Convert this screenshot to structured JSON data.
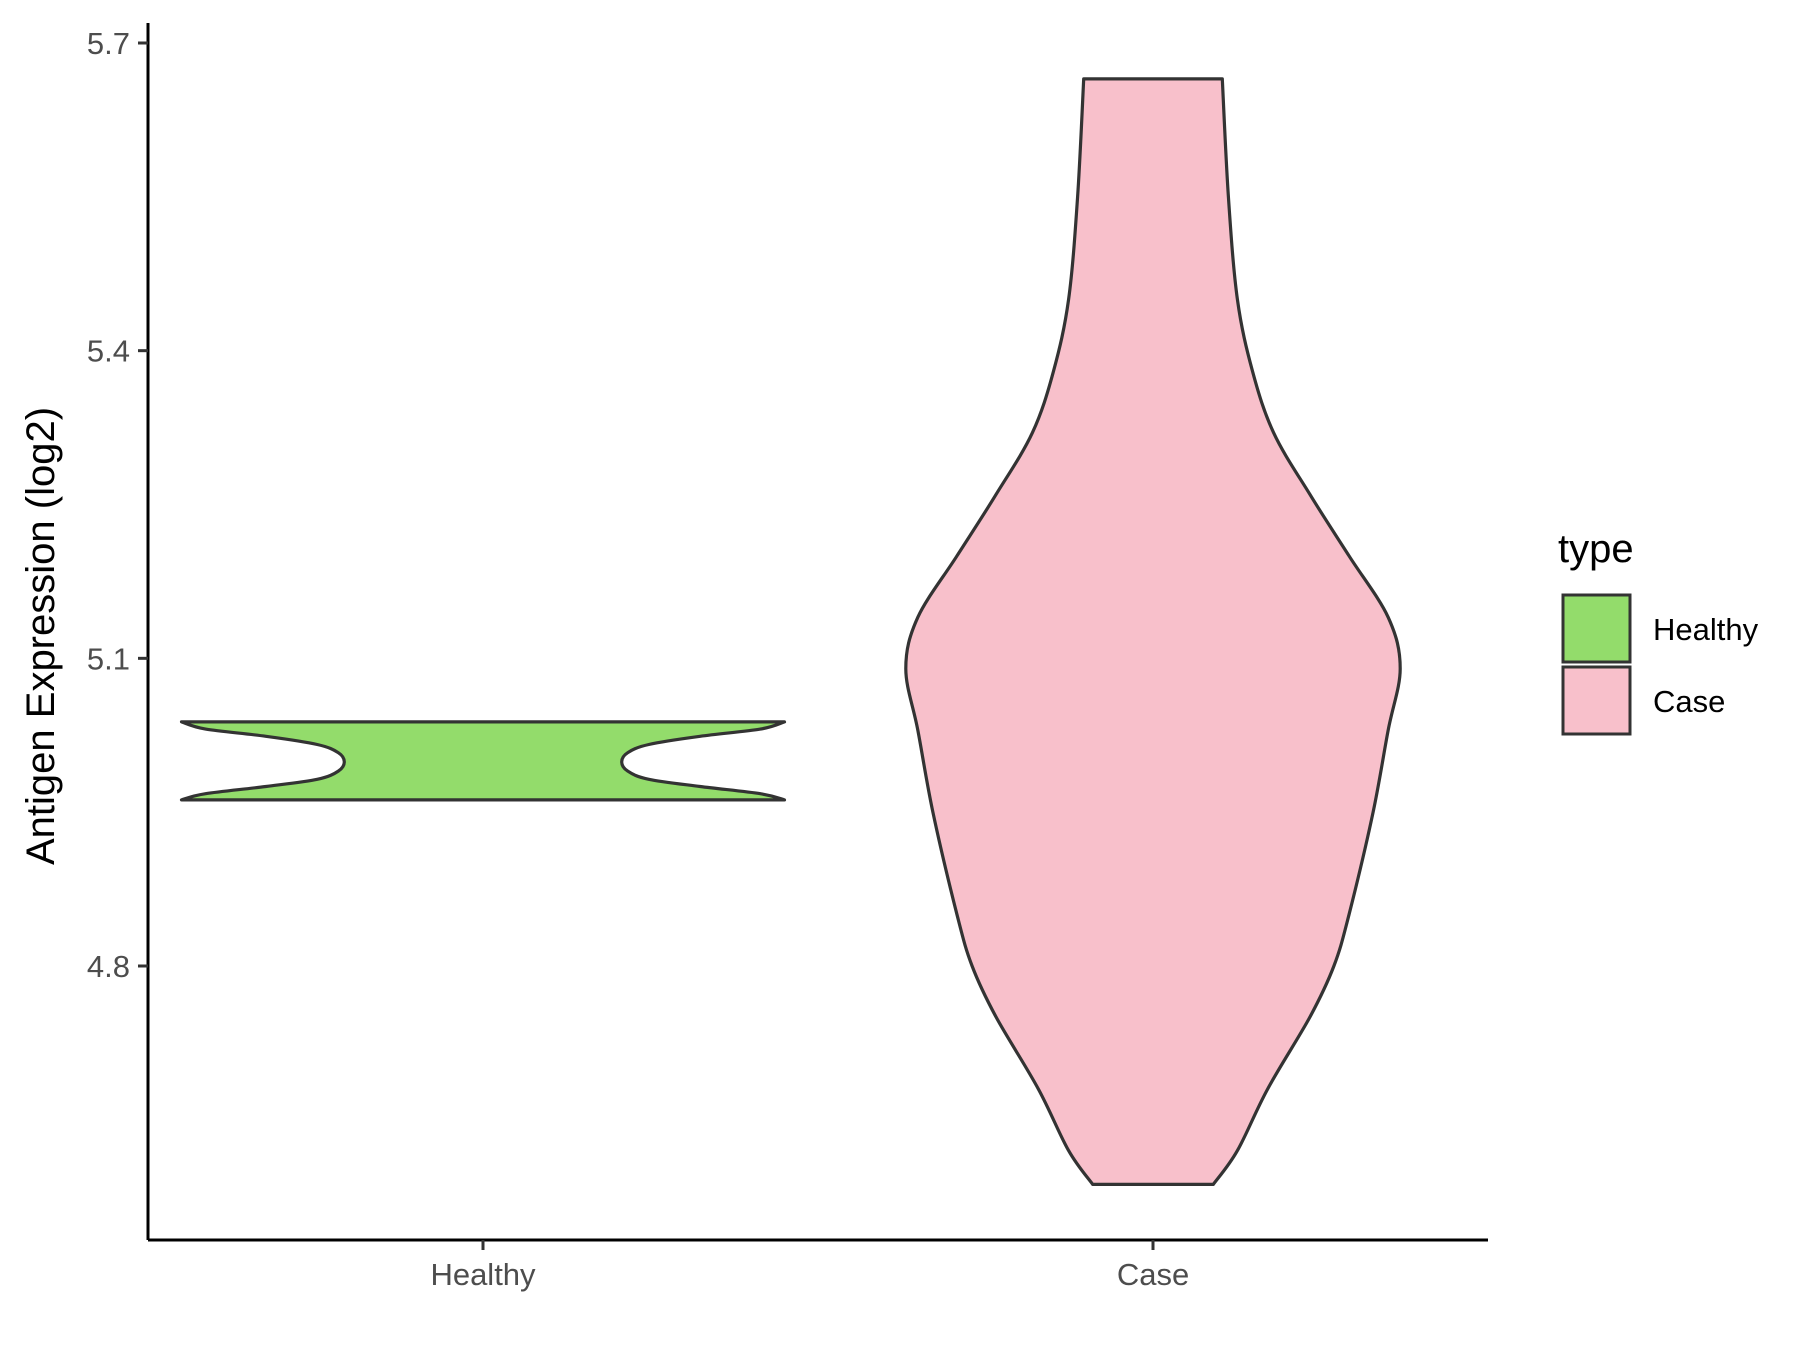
{
  "chart_data": {
    "type": "violin",
    "ylabel": "Antigen Expression (log2)",
    "xlabel": "",
    "categories": [
      "Healthy",
      "Case"
    ],
    "ylim": [
      4.535,
      5.72
    ],
    "yticks": [
      4.8,
      5.1,
      5.4,
      5.7
    ],
    "ytick_labels": [
      "4.8",
      "5.1",
      "5.4",
      "5.7"
    ],
    "grid": false,
    "legend": {
      "title": "type",
      "position": "right",
      "entries": [
        {
          "label": "Healthy",
          "color": "#93dc6b"
        },
        {
          "label": "Case",
          "color": "#f8c0cb"
        }
      ]
    },
    "series": [
      {
        "category": "Healthy",
        "color": "#93dc6b",
        "density": [
          {
            "y": 4.962,
            "w": 1.0
          },
          {
            "y": 4.968,
            "w": 0.92
          },
          {
            "y": 4.975,
            "w": 0.72
          },
          {
            "y": 4.982,
            "w": 0.55
          },
          {
            "y": 4.99,
            "w": 0.48
          },
          {
            "y": 4.999,
            "w": 0.46
          },
          {
            "y": 5.008,
            "w": 0.48
          },
          {
            "y": 5.016,
            "w": 0.55
          },
          {
            "y": 5.024,
            "w": 0.72
          },
          {
            "y": 5.031,
            "w": 0.92
          },
          {
            "y": 5.038,
            "w": 1.0
          }
        ]
      },
      {
        "category": "Case",
        "color": "#f8c0cb",
        "density": [
          {
            "y": 4.587,
            "w": 0.2
          },
          {
            "y": 4.62,
            "w": 0.28
          },
          {
            "y": 4.68,
            "w": 0.38
          },
          {
            "y": 4.75,
            "w": 0.52
          },
          {
            "y": 4.8,
            "w": 0.6
          },
          {
            "y": 4.85,
            "w": 0.65
          },
          {
            "y": 4.95,
            "w": 0.73
          },
          {
            "y": 5.03,
            "w": 0.78
          },
          {
            "y": 5.09,
            "w": 0.82
          },
          {
            "y": 5.14,
            "w": 0.78
          },
          {
            "y": 5.2,
            "w": 0.65
          },
          {
            "y": 5.26,
            "w": 0.52
          },
          {
            "y": 5.32,
            "w": 0.4
          },
          {
            "y": 5.38,
            "w": 0.33
          },
          {
            "y": 5.45,
            "w": 0.28
          },
          {
            "y": 5.55,
            "w": 0.25
          },
          {
            "y": 5.665,
            "w": 0.23
          }
        ]
      }
    ]
  }
}
